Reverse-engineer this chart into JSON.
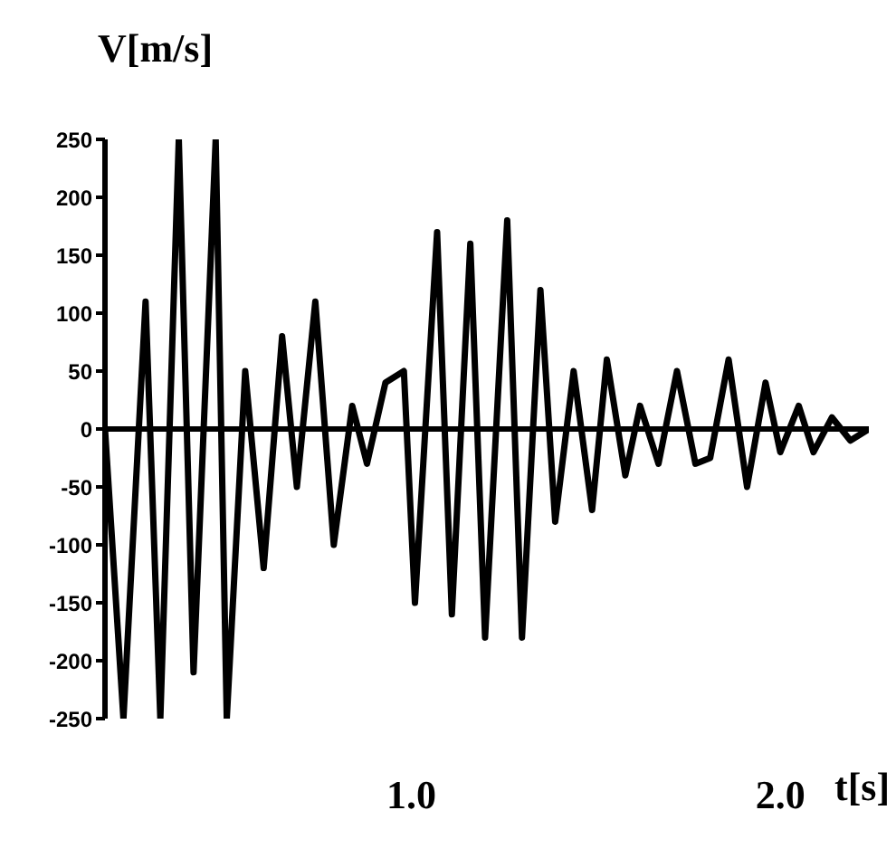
{
  "chart_data": {
    "type": "line",
    "ylabel": "V[m/s]",
    "xlabel": "t[s]",
    "series": [
      {
        "color": "#000000",
        "x": [
          0.17,
          0.22,
          0.28,
          0.32,
          0.37,
          0.41,
          0.47,
          0.5,
          0.55,
          0.6,
          0.65,
          0.69,
          0.74,
          0.79,
          0.84,
          0.88,
          0.93,
          0.98,
          1.01,
          1.07,
          1.11,
          1.16,
          1.2,
          1.26,
          1.3,
          1.35,
          1.39,
          1.44,
          1.49,
          1.53,
          1.58,
          1.62,
          1.67,
          1.72,
          1.77,
          1.81,
          1.86,
          1.91,
          1.96,
          2.0,
          2.05,
          2.09,
          2.14,
          2.19,
          2.24
        ],
        "values": [
          0,
          -250,
          110,
          -250,
          250,
          -210,
          250,
          -250,
          50,
          -120,
          80,
          -50,
          110,
          -100,
          20,
          -30,
          40,
          50,
          -150,
          170,
          -160,
          160,
          -180,
          180,
          -180,
          120,
          -80,
          50,
          -70,
          60,
          -40,
          20,
          -30,
          50,
          -30,
          -25,
          60,
          -50,
          40,
          -20,
          20,
          -20,
          10,
          -10,
          0
        ]
      }
    ],
    "xlim": [
      0.17,
      2.24
    ],
    "xticks": [
      {
        "value": 1,
        "label": "1.0"
      },
      {
        "value": 2,
        "label": "2.0"
      }
    ],
    "ylim": [
      -250,
      250
    ],
    "yticks": [
      -250,
      -200,
      -150,
      -100,
      -50,
      0,
      50,
      100,
      150,
      200,
      250
    ],
    "ref_lines": [
      {
        "axis": "y",
        "value": 0,
        "color": "#000000"
      }
    ],
    "grid": false,
    "marker": "none",
    "line_style": "solid"
  }
}
